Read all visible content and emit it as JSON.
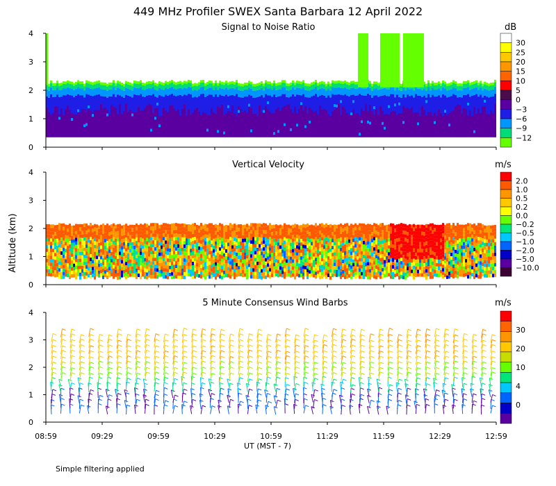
{
  "title": "449 MHz Profiler SWEX Santa Barbara 12 April 2022",
  "ylabel": "Altitude (km)",
  "xlabel": "UT  (MST - 7)",
  "note": "Simple filtering applied",
  "x_ticks": [
    "08:59",
    "09:29",
    "09:59",
    "10:29",
    "10:59",
    "11:29",
    "11:59",
    "12:29",
    "12:59"
  ],
  "y_ticks": [
    "0",
    "1",
    "2",
    "3",
    "4"
  ],
  "chart_data": [
    {
      "type": "heatmap",
      "title": "Signal to Noise Ratio",
      "unit": "dB",
      "ylim": [
        0,
        4
      ],
      "colorbar_labels": [
        "30",
        "25",
        "20",
        "15",
        "10",
        "5",
        "0",
        "−3",
        "−6",
        "−9",
        "−12"
      ],
      "colorbar_colors": [
        "#ffffff",
        "#ffff00",
        "#ffc800",
        "#ff9600",
        "#ff6400",
        "#ff0000",
        "#4b0c4b",
        "#5a00a0",
        "#1e1ee6",
        "#0096ff",
        "#00dc78",
        "#64ff00"
      ],
      "top_of_returns_km": 2.2,
      "colors": {
        "low": "#5a00a0",
        "mid": "#1e1ee6",
        "upper": "#0096ff",
        "edge": "#00dc78",
        "top": "#64ff00"
      }
    },
    {
      "type": "heatmap",
      "title": "Vertical Velocity",
      "unit": "m/s",
      "ylim": [
        0,
        4
      ],
      "colorbar_labels": [
        "2.0",
        "1.0",
        "0.5",
        "0.2",
        "0.0",
        "−0.2",
        "−0.5",
        "−1.0",
        "−2.0",
        "−5.0",
        "−10.0"
      ],
      "colorbar_colors": [
        "#ff0000",
        "#ff5a00",
        "#ff9600",
        "#ffc800",
        "#ffff00",
        "#64ff00",
        "#00e678",
        "#00c8ff",
        "#0064ff",
        "#0000c8",
        "#5a00a0",
        "#3c0032"
      ],
      "top_of_returns_km": 2.15
    },
    {
      "type": "scatter",
      "title": "5 Minute Consensus Wind Barbs",
      "unit": "m/s",
      "ylim": [
        0,
        4
      ],
      "colorbar_labels": [
        "30",
        "20",
        "10",
        "4",
        "0"
      ],
      "colorbar_colors": [
        "#ff0000",
        "#ff6400",
        "#ff9600",
        "#ffc800",
        "#c8dc00",
        "#64ff00",
        "#00e678",
        "#00c8ff",
        "#0064ff",
        "#0000c8",
        "#5a00a0"
      ],
      "profiles_every_minutes": 5,
      "layer_altitudes_km": [
        0.3,
        0.5,
        0.7,
        0.9,
        1.1,
        1.3,
        1.5,
        1.7,
        1.9,
        2.1,
        2.3,
        2.5,
        2.7,
        2.9,
        3.1
      ]
    }
  ]
}
